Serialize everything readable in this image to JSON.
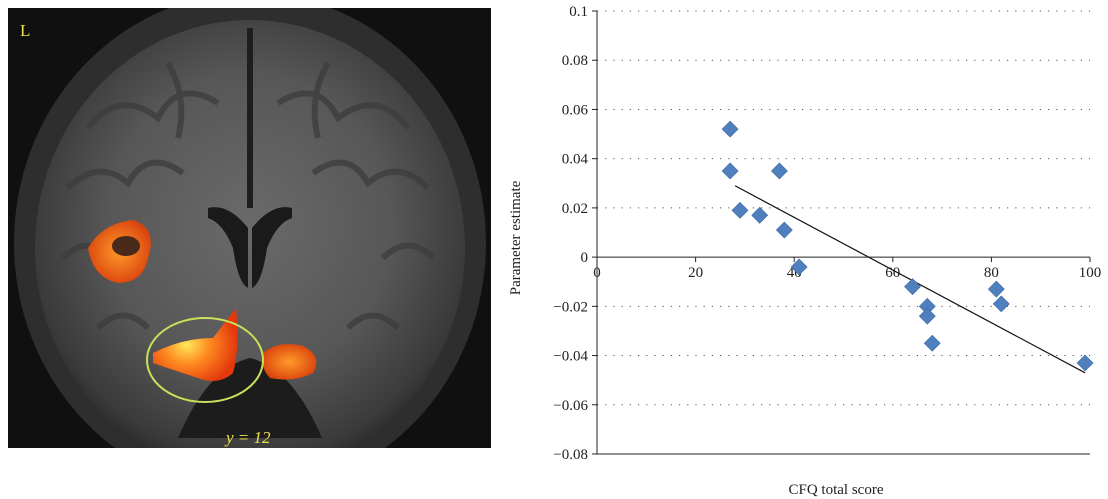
{
  "brain_image": {
    "hemisphere_label": "L",
    "slice_label": "y = 12",
    "colors": {
      "background": "#0c0c0c",
      "activation_hot": "#ff6a1a",
      "activation_peak": "#ffe040",
      "roi_ellipse": "#c8e05a",
      "label": "#f3e04c"
    }
  },
  "chart_data": {
    "type": "scatter",
    "xlabel": "CFQ total score",
    "ylabel": "Parameter estimate",
    "xlim": [
      0,
      100
    ],
    "ylim": [
      -0.08,
      0.1
    ],
    "x_ticks": [
      "0",
      "20",
      "40",
      "60",
      "80",
      "100"
    ],
    "y_ticks": [
      "0.1",
      "0.08",
      "0.06",
      "0.04",
      "0.02",
      "0",
      "−0.02",
      "−0.04",
      "−0.06",
      "−0.08"
    ],
    "grid": "horizontal dotted",
    "marker_color": "#4f7fbd",
    "marker": "diamond",
    "points": [
      {
        "x": 27,
        "y": 0.052
      },
      {
        "x": 27,
        "y": 0.035
      },
      {
        "x": 29,
        "y": 0.019
      },
      {
        "x": 33,
        "y": 0.017
      },
      {
        "x": 37,
        "y": 0.035
      },
      {
        "x": 38,
        "y": 0.011
      },
      {
        "x": 41,
        "y": -0.004
      },
      {
        "x": 64,
        "y": -0.012
      },
      {
        "x": 67,
        "y": -0.02
      },
      {
        "x": 67,
        "y": -0.024
      },
      {
        "x": 68,
        "y": -0.035
      },
      {
        "x": 81,
        "y": -0.013
      },
      {
        "x": 82,
        "y": -0.019
      },
      {
        "x": 99,
        "y": -0.043
      }
    ],
    "trendline": {
      "x": [
        28,
        99
      ],
      "y": [
        0.029,
        -0.047
      ]
    }
  }
}
